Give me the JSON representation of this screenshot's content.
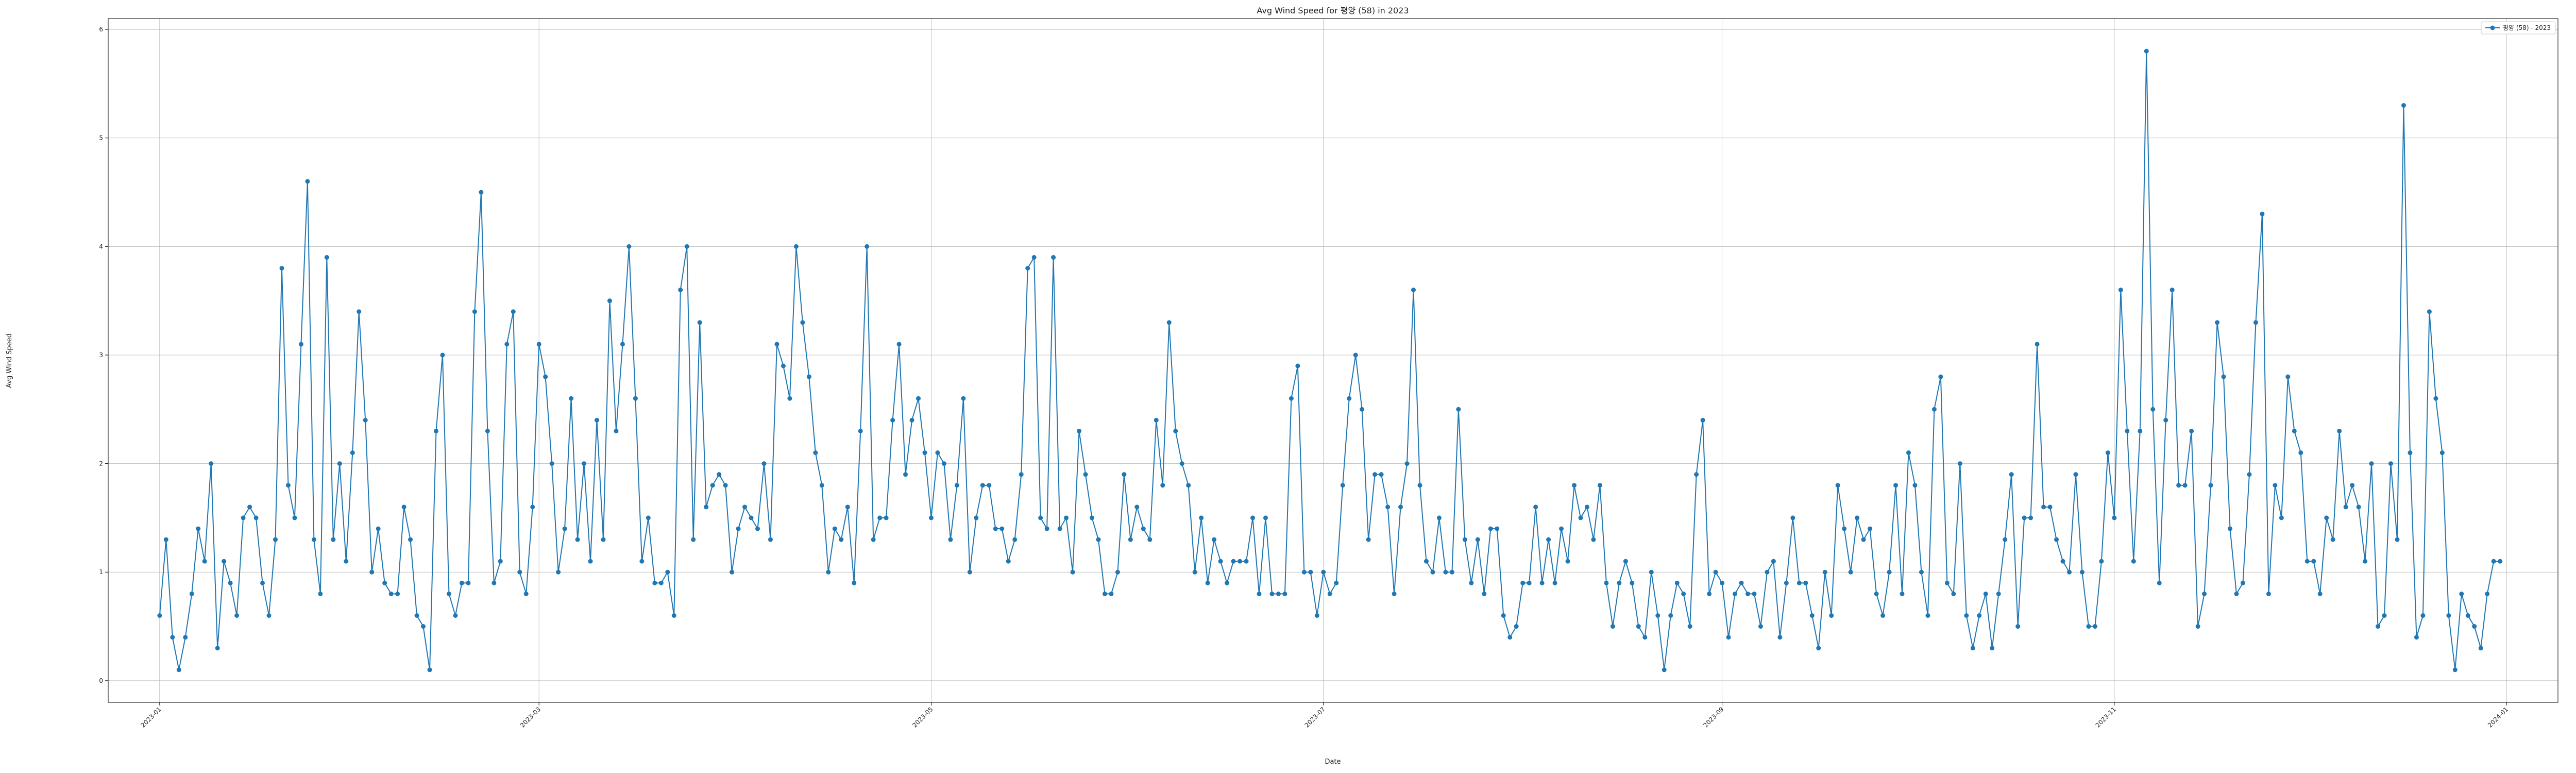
{
  "chart_data": {
    "type": "line",
    "title": "Avg Wind Speed for 평양 (58) in 2023",
    "xlabel": "Date",
    "ylabel": "Avg Wind Speed",
    "ylim": [
      -0.2,
      6.1
    ],
    "yticks": [
      0,
      1,
      2,
      3,
      4,
      5,
      6
    ],
    "x_range": [
      "2022-12-24",
      "2024-01-09"
    ],
    "xticks": [
      "2023-01",
      "2023-03",
      "2023-05",
      "2023-07",
      "2023-09",
      "2023-11",
      "2024-01"
    ],
    "grid": true,
    "legend_position": "top-right",
    "series_color": "#1f77b4",
    "series": [
      {
        "name": "평양 (58) - 2023",
        "x_start": "2023-01-01",
        "x_step_days": 1,
        "values": [
          0.6,
          1.3,
          0.4,
          0.1,
          0.4,
          0.8,
          1.4,
          1.1,
          2.0,
          0.3,
          1.1,
          0.9,
          0.6,
          1.5,
          1.6,
          1.5,
          0.9,
          0.6,
          1.3,
          3.8,
          1.8,
          1.5,
          3.1,
          4.6,
          1.3,
          0.8,
          3.9,
          1.3,
          2.0,
          1.1,
          2.1,
          3.4,
          2.4,
          1.0,
          1.4,
          0.9,
          0.8,
          0.8,
          1.6,
          1.3,
          0.6,
          0.5,
          0.1,
          2.3,
          3.0,
          0.8,
          0.6,
          0.9,
          0.9,
          3.4,
          4.5,
          2.3,
          0.9,
          1.1,
          3.1,
          3.4,
          1.0,
          0.8,
          1.6,
          3.1,
          2.8,
          2.0,
          1.0,
          1.4,
          2.6,
          1.3,
          2.0,
          1.1,
          2.4,
          1.3,
          3.5,
          2.3,
          3.1,
          4.0,
          2.6,
          1.1,
          1.5,
          0.9,
          0.9,
          1.0,
          0.6,
          3.6,
          4.0,
          1.3,
          3.3,
          1.6,
          1.8,
          1.9,
          1.8,
          1.0,
          1.4,
          1.6,
          1.5,
          1.4,
          2.0,
          1.3,
          3.1,
          2.9,
          2.6,
          4.0,
          3.3,
          2.8,
          2.1,
          1.8,
          1.0,
          1.4,
          1.3,
          1.6,
          0.9,
          2.3,
          4.0,
          1.3,
          1.5,
          1.5,
          2.4,
          3.1,
          1.9,
          2.4,
          2.6,
          2.1,
          1.5,
          2.1,
          2.0,
          1.3,
          1.8,
          2.6,
          1.0,
          1.5,
          1.8,
          1.8,
          1.4,
          1.4,
          1.1,
          1.3,
          1.9,
          3.8,
          3.9,
          1.5,
          1.4,
          3.9,
          1.4,
          1.5,
          1.0,
          2.3,
          1.9,
          1.5,
          1.3,
          0.8,
          0.8,
          1.0,
          1.9,
          1.3,
          1.6,
          1.4,
          1.3,
          2.4,
          1.8,
          3.3,
          2.3,
          2.0,
          1.8,
          1.0,
          1.5,
          0.9,
          1.3,
          1.1,
          0.9,
          1.1,
          1.1,
          1.1,
          1.5,
          0.8,
          1.5,
          0.8,
          0.8,
          0.8,
          2.6,
          2.9,
          1.0,
          1.0,
          0.6,
          1.0,
          0.8,
          0.9,
          1.8,
          2.6,
          3.0,
          2.5,
          1.3,
          1.9,
          1.9,
          1.6,
          0.8,
          1.6,
          2.0,
          3.6,
          1.8,
          1.1,
          1.0,
          1.5,
          1.0,
          1.0,
          2.5,
          1.3,
          0.9,
          1.3,
          0.8,
          1.4,
          1.4,
          0.6,
          0.4,
          0.5,
          0.9,
          0.9,
          1.6,
          0.9,
          1.3,
          0.9,
          1.4,
          1.1,
          1.8,
          1.5,
          1.6,
          1.3,
          1.8,
          0.9,
          0.5,
          0.9,
          1.1,
          0.9,
          0.5,
          0.4,
          1.0,
          0.6,
          0.1,
          0.6,
          0.9,
          0.8,
          0.5,
          1.9,
          2.4,
          0.8,
          1.0,
          0.9,
          0.4,
          0.8,
          0.9,
          0.8,
          0.8,
          0.5,
          1.0,
          1.1,
          0.4,
          0.9,
          1.5,
          0.9,
          0.9,
          0.6,
          0.3,
          1.0,
          0.6,
          1.8,
          1.4,
          1.0,
          1.5,
          1.3,
          1.4,
          0.8,
          0.6,
          1.0,
          1.8,
          0.8,
          2.1,
          1.8,
          1.0,
          0.6,
          2.5,
          2.8,
          0.9,
          0.8,
          2.0,
          0.6,
          0.3,
          0.6,
          0.8,
          0.3,
          0.8,
          1.3,
          1.9,
          0.5,
          1.5,
          1.5,
          3.1,
          1.6,
          1.6,
          1.3,
          1.1,
          1.0,
          1.9,
          1.0,
          0.5,
          0.5,
          1.1,
          2.1,
          1.5,
          3.6,
          2.3,
          1.1,
          2.3,
          5.8,
          2.5,
          0.9,
          2.4,
          3.6,
          1.8,
          1.8,
          2.3,
          0.5,
          0.8,
          1.8,
          3.3,
          2.8,
          1.4,
          0.8,
          0.9,
          1.9,
          3.3,
          4.3,
          0.8,
          1.8,
          1.5,
          2.8,
          2.3,
          2.1,
          1.1,
          1.1,
          0.8,
          1.5,
          1.3,
          2.3,
          1.6,
          1.8,
          1.6,
          1.1,
          2.0,
          0.5,
          0.6,
          2.0,
          1.3,
          5.3,
          2.1,
          0.4,
          0.6,
          3.4,
          2.6,
          2.1,
          0.6,
          0.1,
          0.8,
          0.6,
          0.5,
          0.3,
          0.8,
          1.1,
          1.1
        ]
      }
    ]
  }
}
